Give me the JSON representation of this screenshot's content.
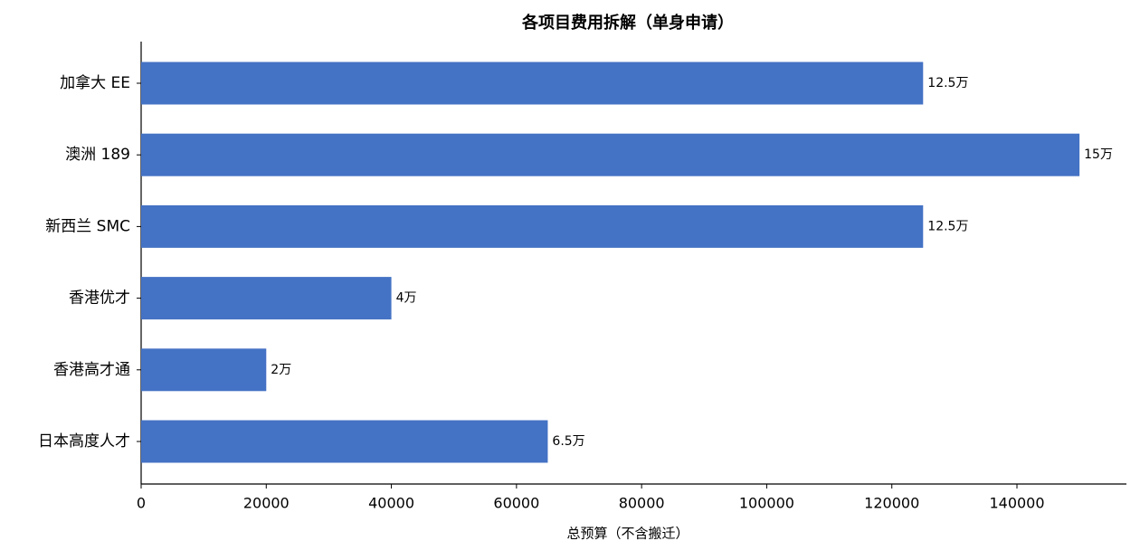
{
  "chart_data": {
    "type": "barh",
    "title": "各项目费用拆解（单身申请）",
    "xlabel": "总预算（不含搬迁）",
    "categories": [
      "加拿大 EE",
      "澳洲 189",
      "新西兰 SMC",
      "香港优才",
      "香港高才通",
      "日本高度人才"
    ],
    "values": [
      125000,
      150000,
      125000,
      40000,
      20000,
      65000
    ],
    "value_labels": [
      "12.5万",
      "15万",
      "12.5万",
      "4万",
      "2万",
      "6.5万"
    ],
    "color": "#4472c4",
    "xlim": [
      0,
      157500
    ],
    "xticks": [
      0,
      20000,
      40000,
      60000,
      80000,
      100000,
      120000,
      140000
    ],
    "grid": false
  }
}
